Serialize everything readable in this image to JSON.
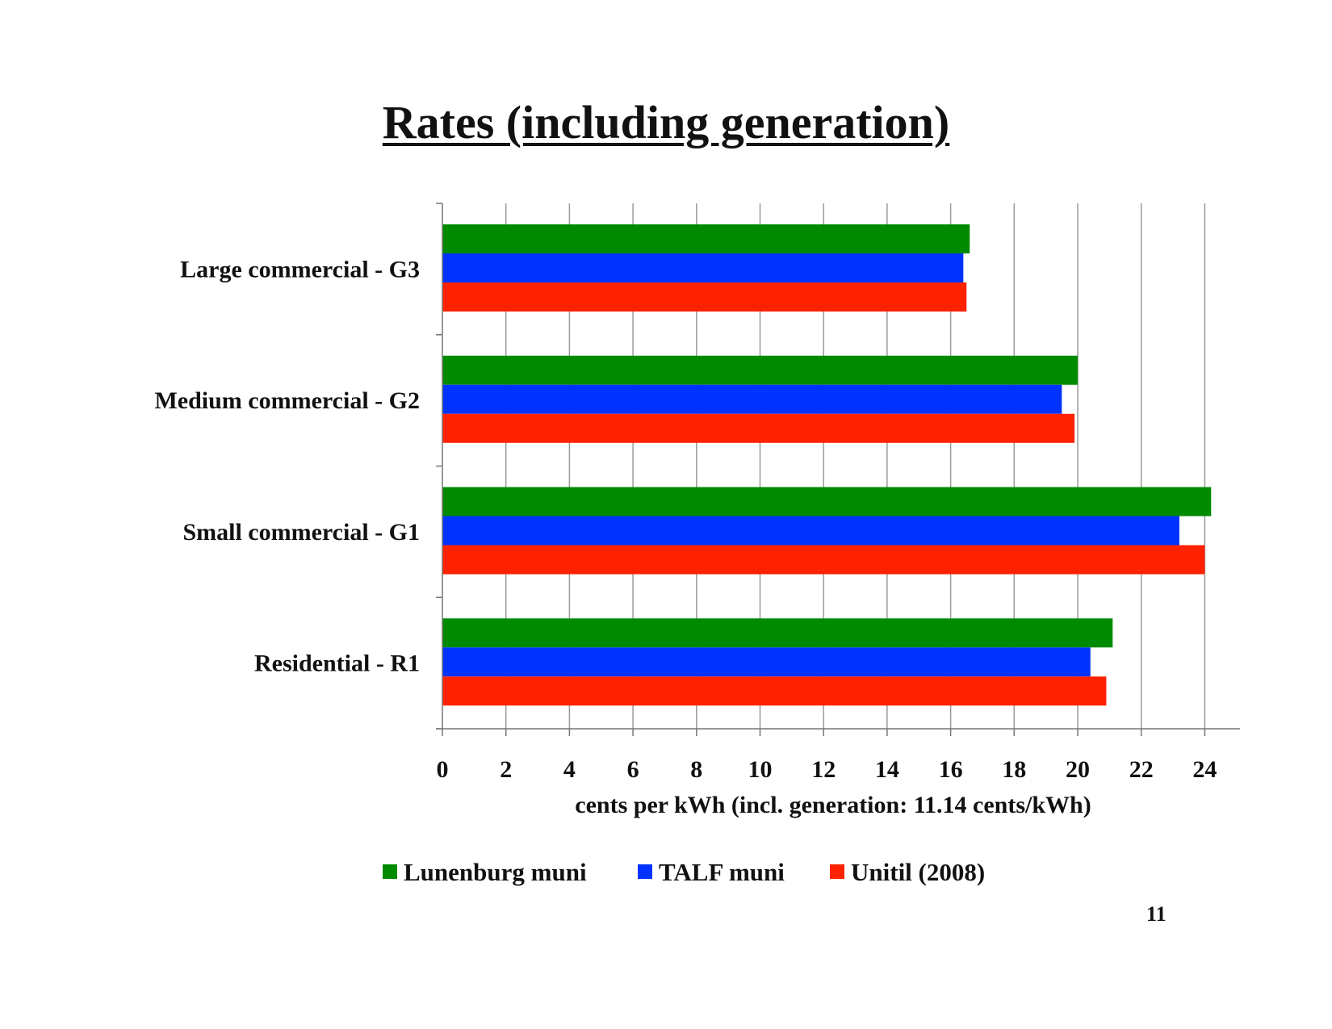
{
  "slide": {
    "page_number": "11"
  },
  "chart_data": {
    "type": "bar",
    "orientation": "horizontal",
    "title": "Rates (including generation)",
    "xlabel": "cents per kWh (incl. generation: 11.14 cents/kWh)",
    "ylabel": "",
    "xlim": [
      0,
      25
    ],
    "xticks": [
      0,
      2,
      4,
      6,
      8,
      10,
      12,
      14,
      16,
      18,
      20,
      22,
      24
    ],
    "grid": true,
    "legend_position": "bottom",
    "categories": [
      "Large commercial - G3",
      "Medium commercial - G2",
      "Small commercial - G1",
      "Residential - R1"
    ],
    "series": [
      {
        "name": "Lunenburg muni",
        "color": "#008a00",
        "values": [
          16.6,
          20.0,
          24.2,
          21.1
        ]
      },
      {
        "name": "TALF muni",
        "color": "#0033ff",
        "values": [
          16.4,
          19.5,
          23.2,
          20.4
        ]
      },
      {
        "name": "Unitil (2008)",
        "color": "#ff2200",
        "values": [
          16.5,
          19.9,
          24.0,
          20.9
        ]
      }
    ]
  }
}
